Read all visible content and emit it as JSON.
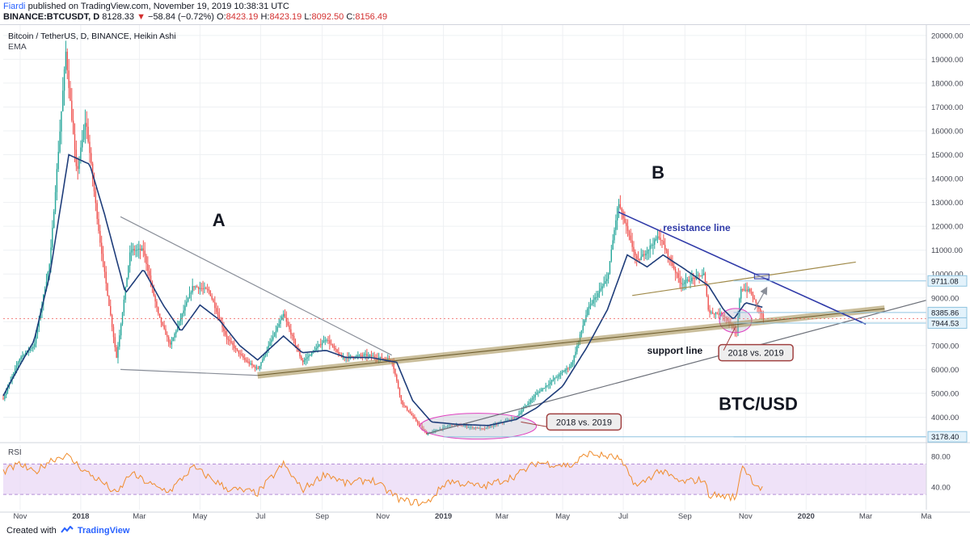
{
  "header": {
    "author": "Fiardi",
    "published_text": "published on TradingView.com, November 19, 2019 10:38:31 UTC",
    "symbol": "BINANCE:BTCUSDT, D",
    "last": "8128.33",
    "change": "−58.84 (−0.72%)",
    "o_label": "O:",
    "o_value": "8423.19",
    "h_label": "H:",
    "h_value": "8423.19",
    "l_label": "L:",
    "l_value": "8092.50",
    "c_label": "C:",
    "c_value": "8156.49"
  },
  "legend": {
    "title": "Bitcoin / TetherUS, D, BINANCE, Heikin Ashi",
    "indicator": "EMA"
  },
  "footer": {
    "created_with": "Created with",
    "brand": "TradingView"
  },
  "colors": {
    "up": "#26a69a",
    "down": "#ef5350",
    "ema": "#1f3d7a",
    "rsi": "#f08c2c",
    "rsi_band": "#e8d6f5",
    "support": "#a08a4a",
    "resistance": "#2f3aa8",
    "grid": "#eef0f3"
  },
  "chart_data": [
    {
      "type": "candlestick",
      "title": "",
      "price_axis_labels": [
        "20000.00",
        "19000.00",
        "18000.00",
        "17000.00",
        "16000.00",
        "15000.00",
        "14000.00",
        "13000.00",
        "12000.00",
        "11000.00",
        "10000.00",
        "9000.00",
        "8000.00",
        "7000.00",
        "6000.00",
        "5000.00",
        "4000.00"
      ],
      "time_axis_labels": [
        "Nov",
        "2018",
        "Mar",
        "May",
        "Jul",
        "Sep",
        "Nov",
        "2019",
        "Mar",
        "May",
        "Jul",
        "Sep",
        "Nov",
        "2020",
        "Mar",
        "Ma"
      ],
      "ylim": [
        3000,
        20300
      ],
      "x_range": [
        "2017-10-15",
        "2020-05-01"
      ],
      "price_path": [
        [
          "2017-10-15",
          4800
        ],
        [
          "2017-11-01",
          6500
        ],
        [
          "2017-11-15",
          7000
        ],
        [
          "2017-12-01",
          10500
        ],
        [
          "2017-12-17",
          19300
        ],
        [
          "2017-12-28",
          14200
        ],
        [
          "2018-01-06",
          16500
        ],
        [
          "2018-01-20",
          11500
        ],
        [
          "2018-02-06",
          6500
        ],
        [
          "2018-02-20",
          11000
        ],
        [
          "2018-03-05",
          11000
        ],
        [
          "2018-03-20",
          8300
        ],
        [
          "2018-04-01",
          7000
        ],
        [
          "2018-04-24",
          9500
        ],
        [
          "2018-05-10",
          9300
        ],
        [
          "2018-05-28",
          7300
        ],
        [
          "2018-06-15",
          6400
        ],
        [
          "2018-06-28",
          6000
        ],
        [
          "2018-07-24",
          8300
        ],
        [
          "2018-08-12",
          6300
        ],
        [
          "2018-09-05",
          7300
        ],
        [
          "2018-09-20",
          6500
        ],
        [
          "2018-10-15",
          6600
        ],
        [
          "2018-11-10",
          6400
        ],
        [
          "2018-11-20",
          4600
        ],
        [
          "2018-12-15",
          3300
        ],
        [
          "2019-01-10",
          3700
        ],
        [
          "2019-02-10",
          3500
        ],
        [
          "2019-03-15",
          4000
        ],
        [
          "2019-04-05",
          5000
        ],
        [
          "2019-05-10",
          6200
        ],
        [
          "2019-05-26",
          8500
        ],
        [
          "2019-06-15",
          9800
        ],
        [
          "2019-06-26",
          13000
        ],
        [
          "2019-07-15",
          10500
        ],
        [
          "2019-08-06",
          11600
        ],
        [
          "2019-08-28",
          9600
        ],
        [
          "2019-09-20",
          10000
        ],
        [
          "2019-09-25",
          8400
        ],
        [
          "2019-10-10",
          8300
        ],
        [
          "2019-10-23",
          7500
        ],
        [
          "2019-10-27",
          9400
        ],
        [
          "2019-11-05",
          9300
        ],
        [
          "2019-11-19",
          8150
        ]
      ],
      "ema_path": [
        [
          "2017-10-15",
          4900
        ],
        [
          "2017-11-01",
          6200
        ],
        [
          "2017-11-15",
          7200
        ],
        [
          "2017-12-01",
          10000
        ],
        [
          "2017-12-20",
          15000
        ],
        [
          "2018-01-10",
          14600
        ],
        [
          "2018-01-25",
          12500
        ],
        [
          "2018-02-15",
          9200
        ],
        [
          "2018-03-05",
          10200
        ],
        [
          "2018-03-25",
          8700
        ],
        [
          "2018-04-12",
          7600
        ],
        [
          "2018-05-01",
          8700
        ],
        [
          "2018-05-20",
          8100
        ],
        [
          "2018-06-10",
          7000
        ],
        [
          "2018-06-28",
          6400
        ],
        [
          "2018-07-24",
          7400
        ],
        [
          "2018-08-12",
          6700
        ],
        [
          "2018-09-05",
          6800
        ],
        [
          "2018-09-25",
          6500
        ],
        [
          "2018-10-20",
          6500
        ],
        [
          "2018-11-15",
          6300
        ],
        [
          "2018-12-01",
          4700
        ],
        [
          "2018-12-20",
          3800
        ],
        [
          "2019-01-15",
          3700
        ],
        [
          "2019-02-15",
          3650
        ],
        [
          "2019-03-15",
          3900
        ],
        [
          "2019-04-05",
          4400
        ],
        [
          "2019-05-01",
          5300
        ],
        [
          "2019-05-25",
          6900
        ],
        [
          "2019-06-15",
          8500
        ],
        [
          "2019-07-05",
          10800
        ],
        [
          "2019-07-25",
          10300
        ],
        [
          "2019-08-10",
          10800
        ],
        [
          "2019-09-01",
          10200
        ],
        [
          "2019-09-25",
          9500
        ],
        [
          "2019-10-10",
          8500
        ],
        [
          "2019-10-20",
          8100
        ],
        [
          "2019-11-01",
          8800
        ],
        [
          "2019-11-19",
          8600
        ]
      ],
      "price_marks": [
        {
          "value": 9711.08,
          "label": "9711.08"
        },
        {
          "value": 8385.86,
          "label": "8385.86"
        },
        {
          "value": 7944.53,
          "label": "7944.53"
        },
        {
          "value": 3178.4,
          "label": "3178.40"
        }
      ],
      "trendlines": [
        {
          "name": "triangle-a-upper",
          "from": [
            "2018-02-10",
            12400
          ],
          "to": [
            "2018-11-10",
            6600
          ],
          "color": "#8a8f99"
        },
        {
          "name": "triangle-a-lower",
          "from": [
            "2018-02-10",
            6000
          ],
          "to": [
            "2018-06-28",
            5750
          ],
          "color": "#8a8f99"
        },
        {
          "name": "support-line",
          "from": [
            "2018-06-28",
            5750
          ],
          "to": [
            "2020-03-20",
            8550
          ],
          "color": "#a08a4a"
        },
        {
          "name": "long-trendline",
          "from": [
            "2018-12-15",
            3300
          ],
          "to": [
            "2020-05-01",
            8900
          ],
          "color": "#6b6f78"
        },
        {
          "name": "resistance-line",
          "from": [
            "2019-06-26",
            12600
          ],
          "to": [
            "2020-03-01",
            7900
          ],
          "color": "#2f3aa8"
        },
        {
          "name": "channel-line",
          "from": [
            "2019-07-10",
            9100
          ],
          "to": [
            "2020-02-20",
            10500
          ],
          "color": "#a08a4a"
        }
      ],
      "annotations": [
        {
          "text": "A",
          "x": "2018-05-20",
          "y": 12000
        },
        {
          "text": "B",
          "x": "2019-08-05",
          "y": 14000
        },
        {
          "text": "resistance line",
          "x": "2019-08-10",
          "y": 11800
        },
        {
          "text": "support line",
          "x": "2019-07-25",
          "y": 6650
        },
        {
          "text": "2018 vs. 2019",
          "x": "2019-04-15",
          "y": 3700
        },
        {
          "text": "2018 vs. 2019",
          "x": "2019-10-05",
          "y": 6600
        },
        {
          "text": "BTC/USD",
          "x": "2019-10-05",
          "y": 4300
        }
      ]
    },
    {
      "type": "line",
      "title": "RSI",
      "axis_labels": [
        "80.00",
        "40.00"
      ],
      "ylim": [
        10,
        95
      ],
      "band": [
        30,
        70
      ],
      "rsi_path": [
        [
          "2017-10-15",
          60
        ],
        [
          "2017-11-01",
          70
        ],
        [
          "2017-11-15",
          58
        ],
        [
          "2017-12-01",
          75
        ],
        [
          "2017-12-17",
          82
        ],
        [
          "2018-01-06",
          60
        ],
        [
          "2018-01-25",
          44
        ],
        [
          "2018-02-06",
          30
        ],
        [
          "2018-02-20",
          58
        ],
        [
          "2018-03-20",
          38
        ],
        [
          "2018-04-01",
          35
        ],
        [
          "2018-04-24",
          66
        ],
        [
          "2018-05-28",
          38
        ],
        [
          "2018-06-28",
          32
        ],
        [
          "2018-07-24",
          70
        ],
        [
          "2018-08-12",
          36
        ],
        [
          "2018-09-05",
          58
        ],
        [
          "2018-09-25",
          44
        ],
        [
          "2018-10-20",
          50
        ],
        [
          "2018-11-20",
          22
        ],
        [
          "2018-12-15",
          18
        ],
        [
          "2019-01-05",
          48
        ],
        [
          "2019-02-10",
          40
        ],
        [
          "2019-03-15",
          55
        ],
        [
          "2019-04-05",
          72
        ],
        [
          "2019-05-10",
          68
        ],
        [
          "2019-05-26",
          84
        ],
        [
          "2019-06-26",
          78
        ],
        [
          "2019-07-15",
          40
        ],
        [
          "2019-08-06",
          62
        ],
        [
          "2019-08-28",
          46
        ],
        [
          "2019-09-20",
          50
        ],
        [
          "2019-09-25",
          30
        ],
        [
          "2019-10-23",
          26
        ],
        [
          "2019-10-28",
          70
        ],
        [
          "2019-11-10",
          45
        ],
        [
          "2019-11-19",
          36
        ]
      ]
    }
  ]
}
